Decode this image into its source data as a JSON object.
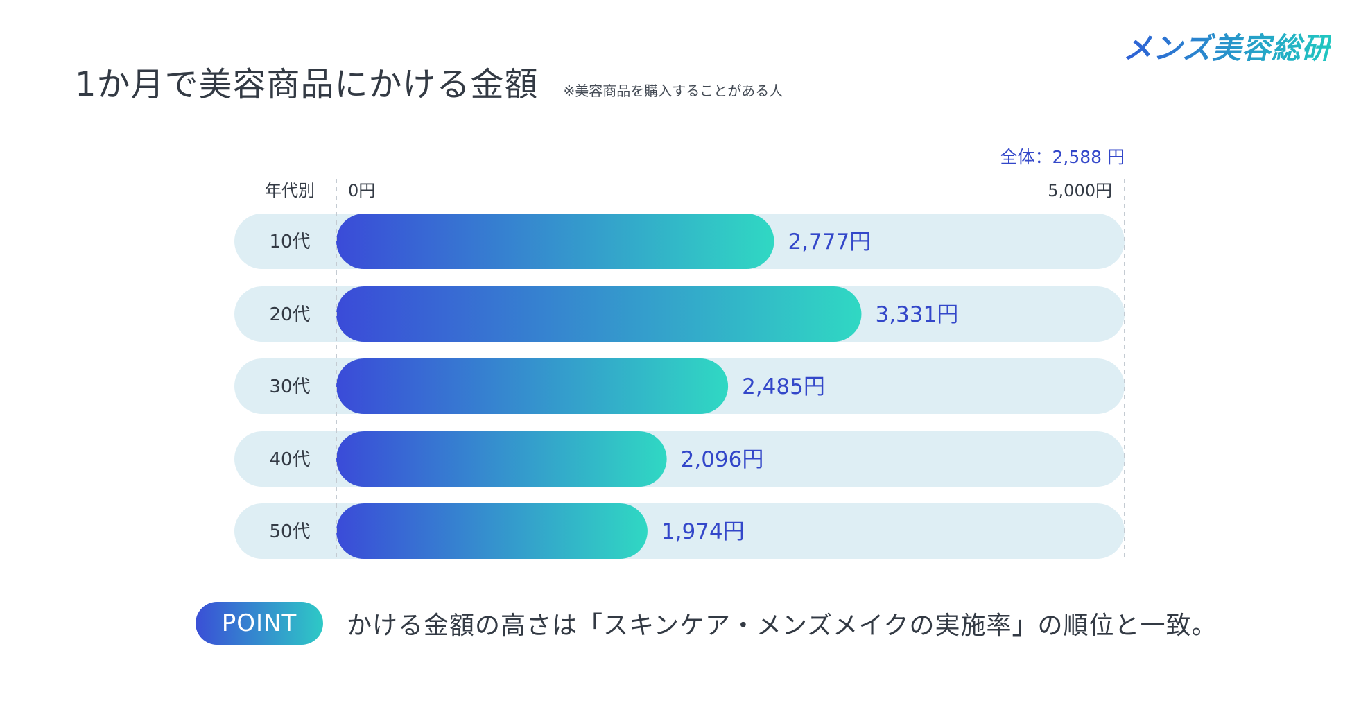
{
  "brand": "メンズ美容総研",
  "title": "1か月で美容商品にかける金額",
  "subtitle": "※美容商品を購入することがある人",
  "point": {
    "badge": "POINT",
    "text": "かける金額の高さは「スキンケア・メンズメイクの実施率」の順位と一致。"
  },
  "colors": {
    "gradient_start": "#3a4bd8",
    "gradient_end": "#30d8c3",
    "track": "#deeef4",
    "value_text": "#3347c9",
    "label_text": "#333a44"
  },
  "chart_data": {
    "type": "bar",
    "orientation": "horizontal",
    "category_header": "年代別",
    "categories": [
      "10代",
      "20代",
      "30代",
      "40代",
      "50代"
    ],
    "values": [
      2777,
      3331,
      2485,
      2096,
      1974
    ],
    "value_labels": [
      "2,777円",
      "3,331円",
      "2,485円",
      "2,096円",
      "1,974円"
    ],
    "xlim": [
      0,
      5000
    ],
    "axis_min_label": "0円",
    "axis_max_label": "5,000円",
    "total_label": "全体：2,588 円",
    "total_value": 2588,
    "unit": "円"
  }
}
